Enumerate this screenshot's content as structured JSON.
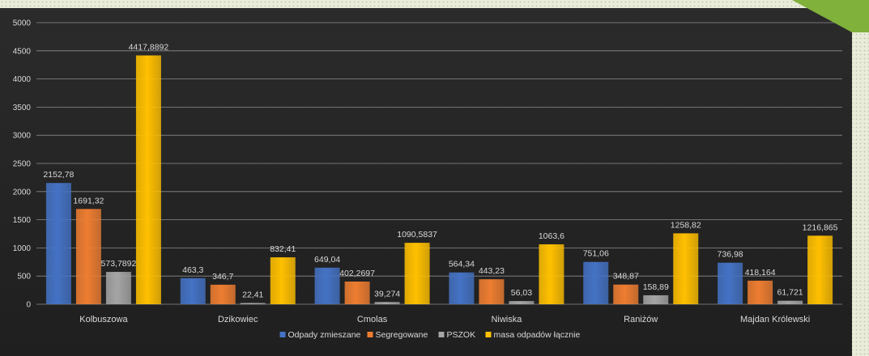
{
  "colors": {
    "accent": "#7fb13b",
    "panel": "#262626",
    "grid": "#8c8c8c",
    "text": "#d9d9d9"
  },
  "chart_data": {
    "type": "bar",
    "categories": [
      "Kolbuszowa",
      "Dzikowiec",
      "Cmolas",
      "Niwiska",
      "Raniżów",
      "Majdan Królewski"
    ],
    "ylim": [
      0,
      5000
    ],
    "yticks": [
      0,
      500,
      1000,
      1500,
      2000,
      2500,
      3000,
      3500,
      4000,
      4500,
      5000
    ],
    "grid": true,
    "legend_position": "bottom",
    "series": [
      {
        "name": "Odpady zmieszane",
        "color": "#4472c4",
        "values": [
          2152.78,
          463.3,
          649.04,
          564.34,
          751.06,
          736.98
        ],
        "labels": [
          "2152,78",
          "463,3",
          "649,04",
          "564,34",
          "751,06",
          "736,98"
        ]
      },
      {
        "name": "Segregowane",
        "color": "#ed7d31",
        "values": [
          1691.32,
          346.7,
          402.2697,
          443.23,
          348.87,
          418.164
        ],
        "labels": [
          "1691,32",
          "346,7",
          "402,2697",
          "443,23",
          "348,87",
          "418,164"
        ]
      },
      {
        "name": "PSZOK",
        "color": "#a5a5a5",
        "values": [
          573.7892,
          22.41,
          39.274,
          56.03,
          158.89,
          61.721
        ],
        "labels": [
          "573,7892",
          "22,41",
          "39,274",
          "56,03",
          "158,89",
          "61,721"
        ]
      },
      {
        "name": "masa odpadów łącznie",
        "color": "#ffc000",
        "values": [
          4417.8892,
          832.41,
          1090.5837,
          1063.6,
          1258.82,
          1216.865
        ],
        "labels": [
          "4417,8892",
          "832,41",
          "1090,5837",
          "1063,6",
          "1258,82",
          "1216,865"
        ]
      }
    ]
  }
}
